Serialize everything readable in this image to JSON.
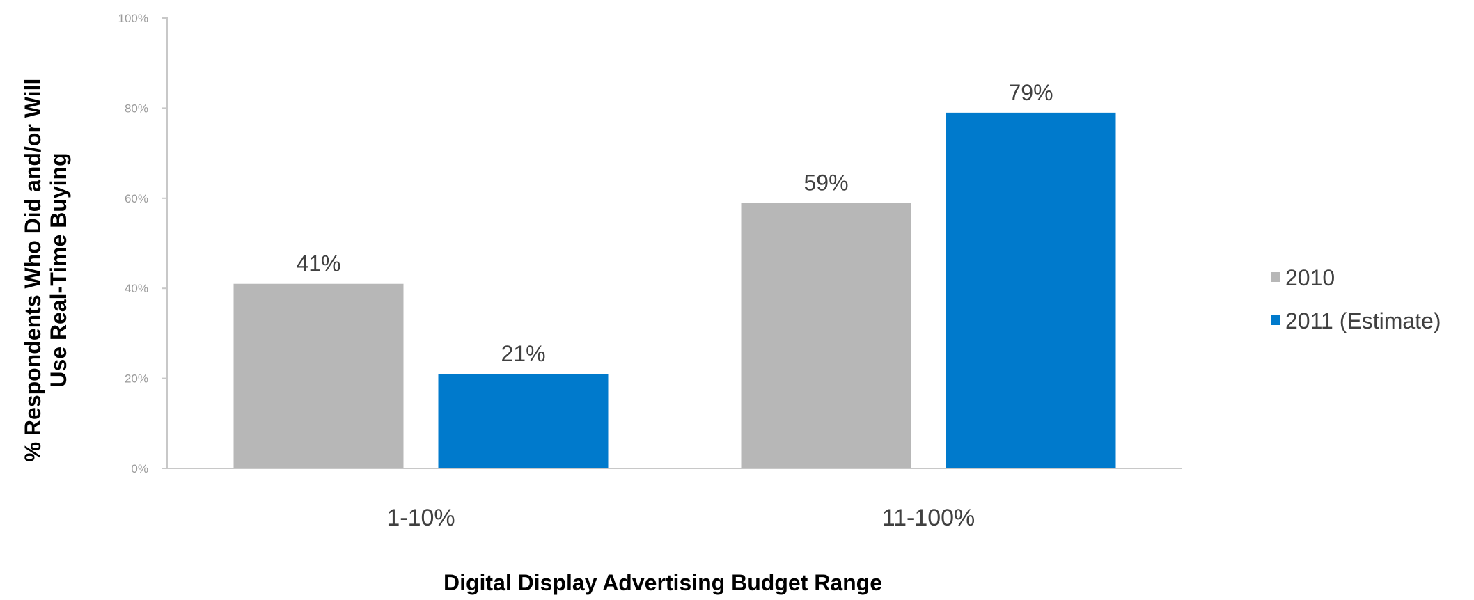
{
  "chart_data": {
    "type": "bar",
    "categories": [
      "1-10%",
      "11-100%"
    ],
    "series": [
      {
        "name": "2010",
        "values": [
          41,
          59
        ],
        "labels": [
          "41%",
          "59%"
        ],
        "color": "#b7b7b7"
      },
      {
        "name": "2011 (Estimate)",
        "values": [
          21,
          79
        ],
        "labels": [
          "21%",
          "79%"
        ],
        "color": "#007acc"
      }
    ],
    "title": "",
    "xlabel": "Digital Display Advertising Budget Range",
    "ylabel_lines": [
      "% Respondents Who Did and/or Will",
      "Use Real-Time Buying"
    ],
    "ylim": [
      0,
      100
    ],
    "yticks": [
      0,
      20,
      40,
      60,
      80,
      100
    ],
    "ytick_labels": [
      "0%",
      "20%",
      "40%",
      "60%",
      "80%",
      "100%"
    ],
    "grid": false,
    "legend_position": "right",
    "axis_color": "#c8c8c8"
  }
}
